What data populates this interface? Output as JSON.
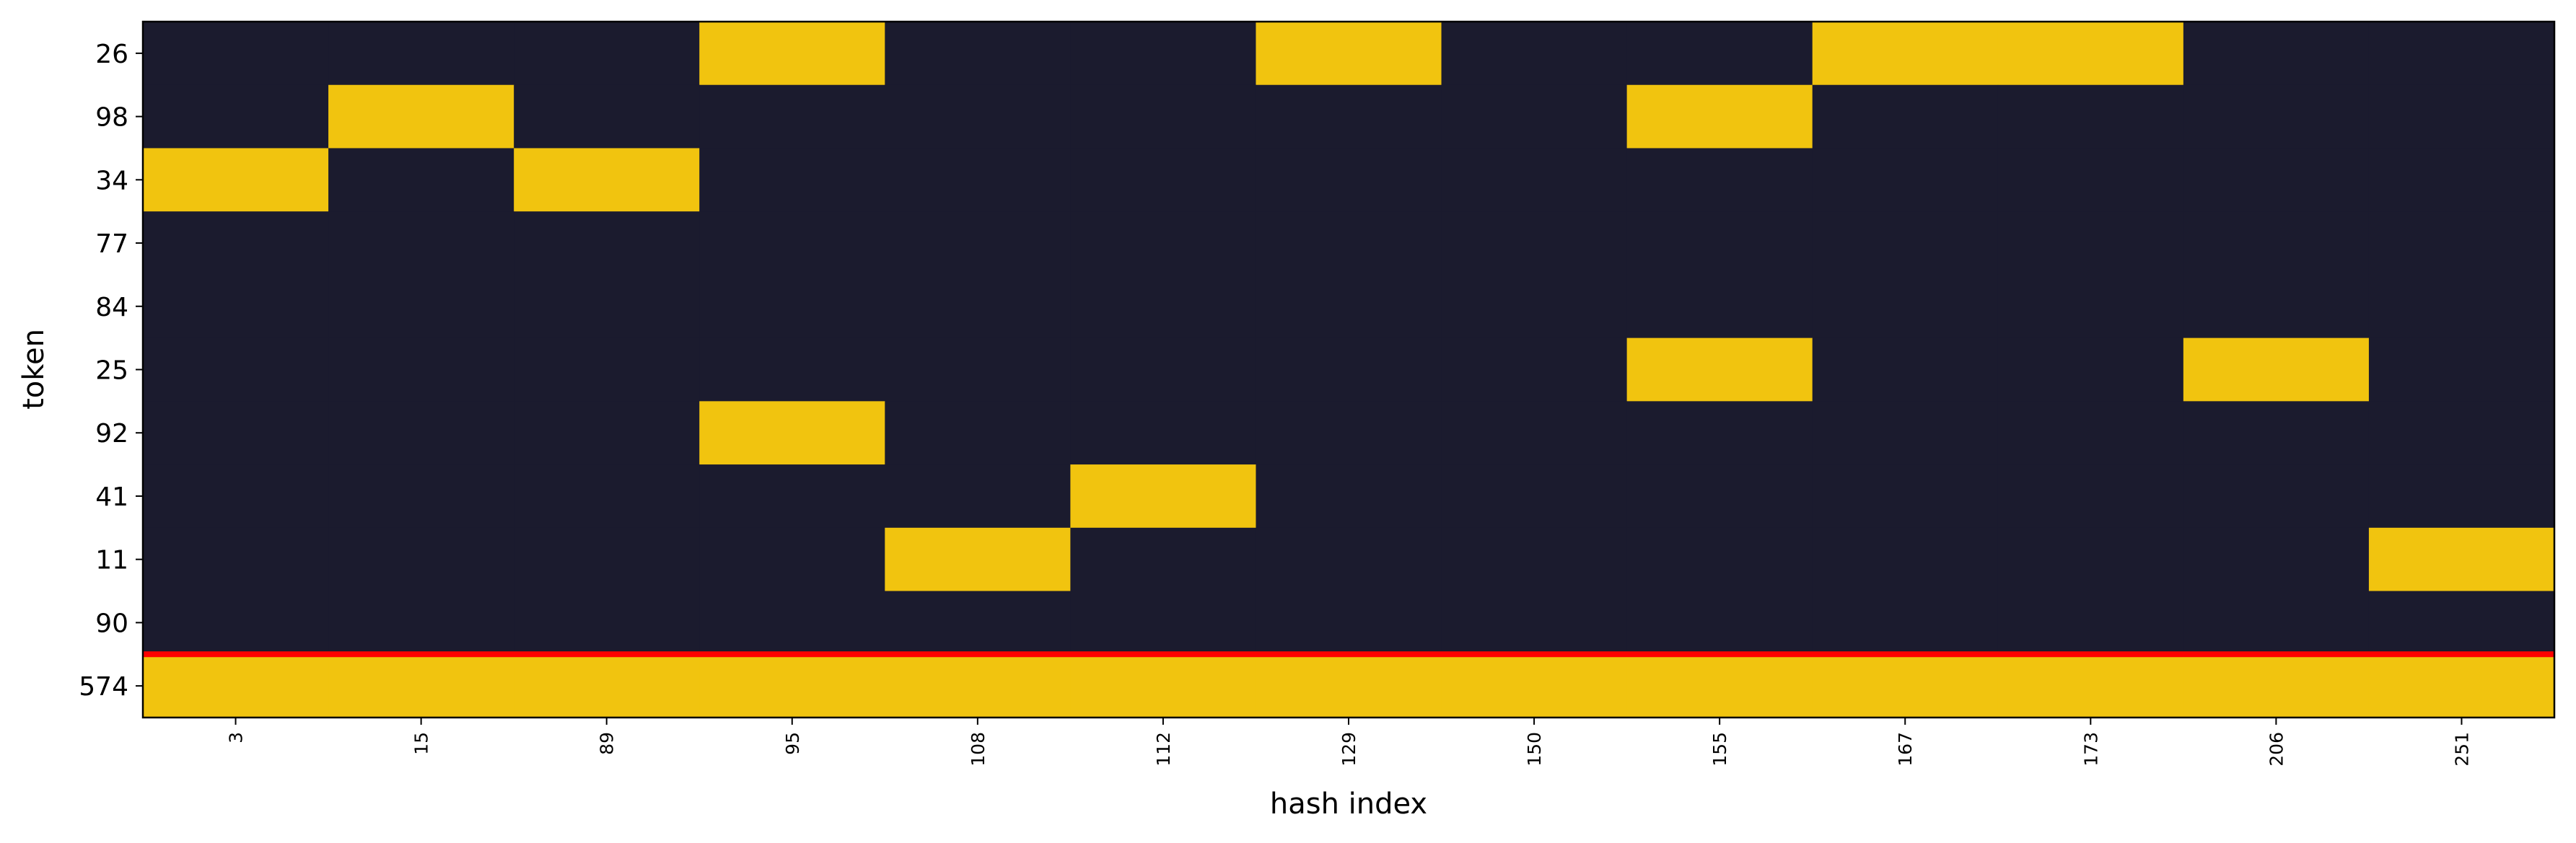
{
  "chart_data": {
    "type": "heatmap",
    "xlabel": "hash index",
    "ylabel": "token",
    "x_categories": [
      3,
      15,
      89,
      95,
      108,
      112,
      129,
      150,
      155,
      167,
      173,
      206,
      251
    ],
    "y_categories": [
      26,
      98,
      34,
      77,
      84,
      25,
      92,
      41,
      11,
      90,
      574
    ],
    "values": [
      [
        0,
        0,
        0,
        1,
        0,
        0,
        1,
        0,
        0,
        1,
        1,
        0,
        0
      ],
      [
        0,
        1,
        0,
        0,
        0,
        0,
        0,
        0,
        1,
        0,
        0,
        0,
        0
      ],
      [
        1,
        0,
        1,
        0,
        0,
        0,
        0,
        0,
        0,
        0,
        0,
        0,
        0
      ],
      [
        0,
        0,
        0,
        0,
        0,
        0,
        0,
        0,
        0,
        0,
        0,
        0,
        0
      ],
      [
        0,
        0,
        0,
        0,
        0,
        0,
        0,
        0,
        0,
        0,
        0,
        0,
        0
      ],
      [
        0,
        0,
        0,
        0,
        0,
        0,
        0,
        0,
        1,
        0,
        0,
        1,
        0
      ],
      [
        0,
        0,
        0,
        1,
        0,
        0,
        0,
        0,
        0,
        0,
        0,
        0,
        0
      ],
      [
        0,
        0,
        0,
        0,
        0,
        1,
        0,
        0,
        0,
        0,
        0,
        0,
        0
      ],
      [
        0,
        0,
        0,
        0,
        1,
        0,
        0,
        0,
        0,
        0,
        0,
        0,
        1
      ],
      [
        0,
        0,
        0,
        0,
        0,
        0,
        0,
        0,
        0,
        0,
        0,
        0,
        0
      ],
      [
        1,
        1,
        1,
        1,
        1,
        1,
        1,
        1,
        1,
        1,
        1,
        1,
        1
      ]
    ],
    "colors": [
      "#1b1b2e",
      "#f1c40f"
    ]
  }
}
